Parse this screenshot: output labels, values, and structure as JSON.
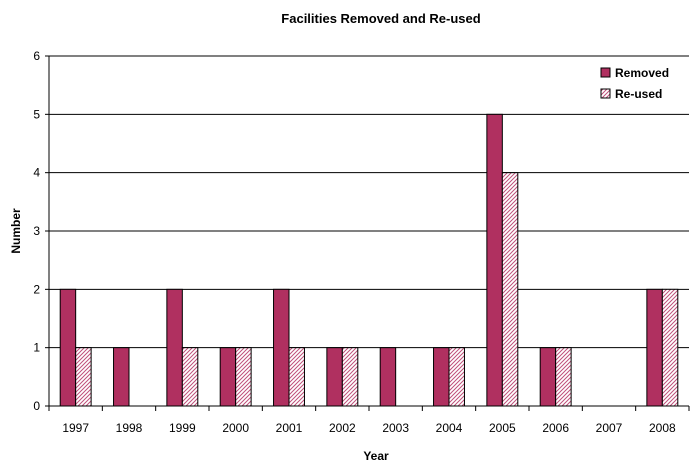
{
  "chart_data": {
    "type": "bar",
    "title": "Facilities Removed and Re-used",
    "xlabel": "Year",
    "ylabel": "Number",
    "categories": [
      "1997",
      "1998",
      "1999",
      "2000",
      "2001",
      "2002",
      "2003",
      "2004",
      "2005",
      "2006",
      "2007",
      "2008"
    ],
    "series": [
      {
        "name": "Removed",
        "values": [
          2,
          1,
          2,
          1,
          2,
          1,
          1,
          1,
          5,
          1,
          0,
          2
        ],
        "color": "#b03060",
        "pattern": "solid"
      },
      {
        "name": "Re-used",
        "values": [
          1,
          0,
          1,
          1,
          1,
          1,
          0,
          1,
          4,
          1,
          0,
          2
        ],
        "color": "#c8a0b8",
        "pattern": "diagonal-hatch"
      }
    ],
    "ylim": [
      0,
      6
    ],
    "yticks": [
      "0",
      "1",
      "2",
      "3",
      "4",
      "5",
      "6"
    ],
    "grid": true,
    "legend_position": "top-right"
  }
}
